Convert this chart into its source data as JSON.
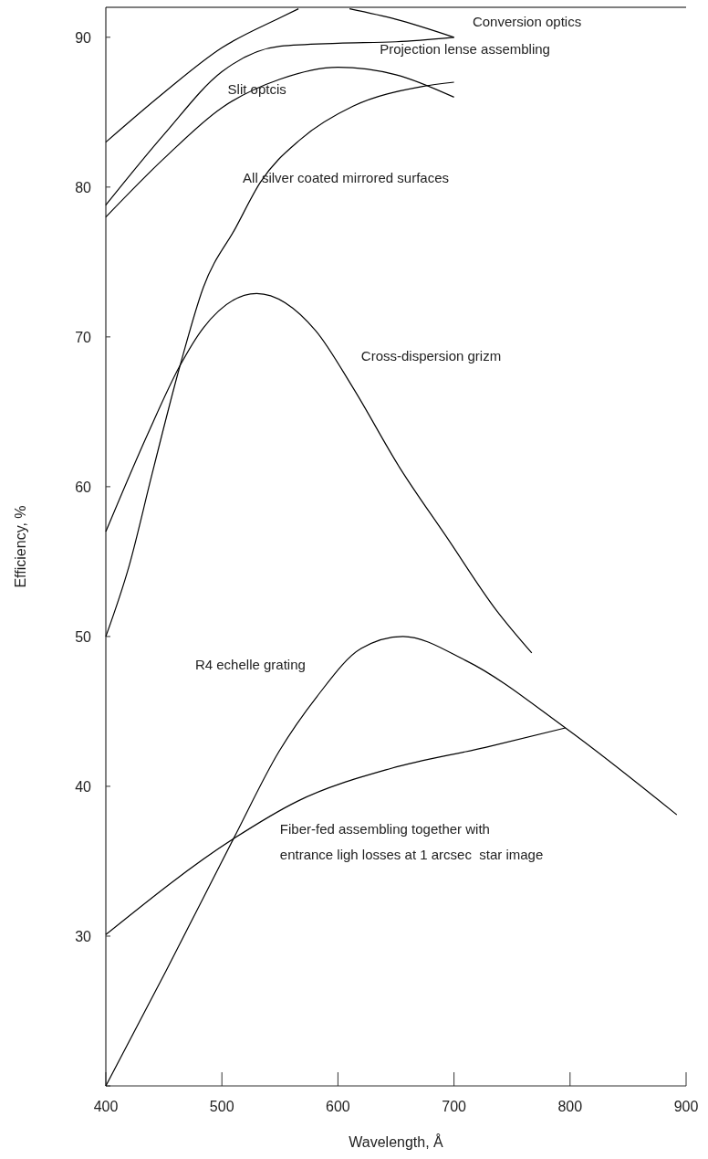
{
  "chart_data": {
    "type": "line",
    "xlabel": "Wavelength, Å",
    "ylabel": "Efficiency, %",
    "xlim": [
      400,
      900
    ],
    "ylim": [
      20,
      92
    ],
    "xticks": [
      400,
      500,
      600,
      700,
      800,
      900
    ],
    "yticks": [
      {
        "value": 20,
        "label": null
      },
      30,
      40,
      50,
      60,
      70,
      80,
      90
    ],
    "grid": false,
    "marker": "none",
    "line_style": "solid",
    "series": [
      {
        "name": "Conversion optics",
        "color": "#000000",
        "x": [
          400,
          450,
          500,
          550,
          566,
          580,
          600,
          610,
          650,
          700
        ],
        "values": [
          83,
          86.3,
          89.3,
          91.3,
          91.9,
          null,
          null,
          91.9,
          91.2,
          90
        ]
      },
      {
        "name": "Projection lense assembling",
        "color": "#000000",
        "x": [
          400,
          450,
          500,
          550,
          600,
          650,
          700
        ],
        "values": [
          78.8,
          83.5,
          87.7,
          89.4,
          89.6,
          89.7,
          90
        ]
      },
      {
        "name": "Slit optcis",
        "color": "#000000",
        "x": [
          400,
          450,
          500,
          550,
          600,
          650,
          700
        ],
        "values": [
          78,
          81.9,
          85.3,
          87.2,
          88,
          87.5,
          86
        ]
      },
      {
        "name": "All silver coated mirrored surfaces",
        "color": "#000000",
        "x": [
          400,
          420,
          440,
          464,
          484,
          512,
          533,
          568,
          613,
          672,
          700
        ],
        "values": [
          50,
          54.7,
          60.9,
          68.1,
          73.3,
          77.3,
          80.3,
          83.2,
          85.4,
          86.7,
          87
        ]
      },
      {
        "name": "Cross-dispersion grizm",
        "color": "#000000",
        "x": [
          400,
          436,
          464,
          484,
          530,
          581,
          613,
          653,
          694,
          736,
          767
        ],
        "values": [
          57,
          63.5,
          68.1,
          70.6,
          72.9,
          70.4,
          66.6,
          61.3,
          56.6,
          51.8,
          48.9
        ]
      },
      {
        "name": "R4 echelle grating",
        "color": "#000000",
        "x": [
          400,
          452,
          510,
          549,
          582,
          620,
          656,
          710,
          796,
          892
        ],
        "values": [
          20,
          27.7,
          36.5,
          42.3,
          46,
          49.2,
          50,
          48.4,
          43.9,
          38.1
        ]
      },
      {
        "name": "Fiber-fed assembling together with\nentrance ligh losses at 1 arcsec  star image",
        "color": "#000000",
        "x": [
          400,
          510,
          565,
          646,
          727,
          796
        ],
        "values": [
          30.1,
          36.5,
          39,
          41.2,
          42.6,
          43.9
        ]
      }
    ]
  }
}
